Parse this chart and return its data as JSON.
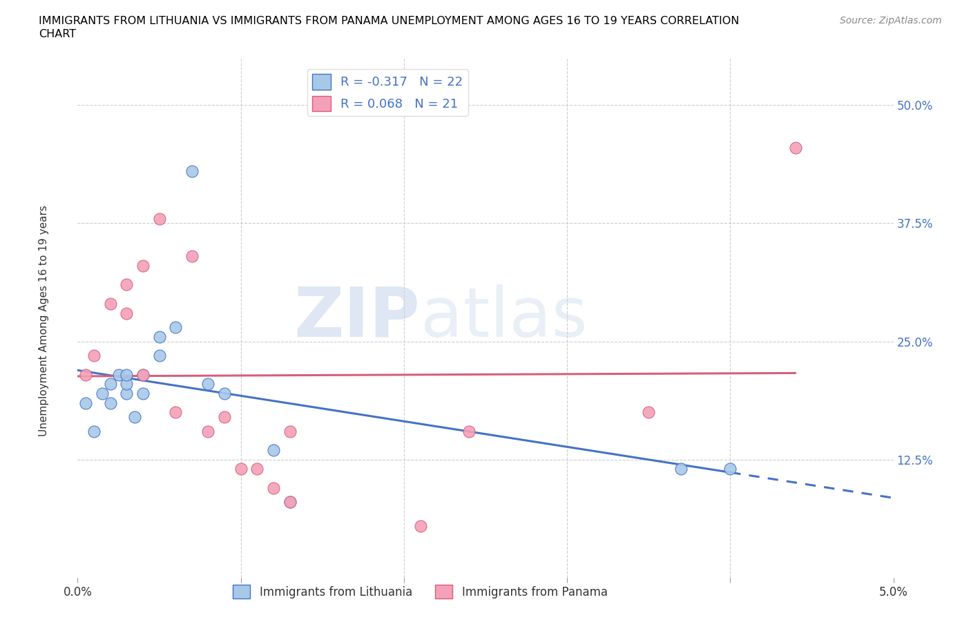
{
  "title_line1": "IMMIGRANTS FROM LITHUANIA VS IMMIGRANTS FROM PANAMA UNEMPLOYMENT AMONG AGES 16 TO 19 YEARS CORRELATION",
  "title_line2": "CHART",
  "source": "Source: ZipAtlas.com",
  "ylabel": "Unemployment Among Ages 16 to 19 years",
  "xlim": [
    0.0,
    0.05
  ],
  "ylim": [
    0.0,
    0.55
  ],
  "xticks": [
    0.0,
    0.01,
    0.02,
    0.03,
    0.04,
    0.05
  ],
  "xticklabels": [
    "0.0%",
    "",
    "",
    "",
    "",
    "5.0%"
  ],
  "ytick_positions": [
    0.125,
    0.25,
    0.375,
    0.5
  ],
  "ytick_labels": [
    "12.5%",
    "25.0%",
    "37.5%",
    "50.0%"
  ],
  "color_lithuania": "#a8c8e8",
  "color_panama": "#f4a0b8",
  "line_color_lithuania": "#4472c4",
  "line_color_panama": "#d4607a",
  "R_lithuania": -0.317,
  "N_lithuania": 22,
  "R_panama": 0.068,
  "N_panama": 21,
  "legend_label_lithuania": "Immigrants from Lithuania",
  "legend_label_panama": "Immigrants from Panama",
  "watermark_zip": "ZIP",
  "watermark_atlas": "atlas",
  "lithuania_x": [
    0.0005,
    0.001,
    0.0015,
    0.002,
    0.002,
    0.0025,
    0.003,
    0.003,
    0.003,
    0.0035,
    0.004,
    0.004,
    0.005,
    0.005,
    0.006,
    0.007,
    0.008,
    0.009,
    0.012,
    0.013,
    0.037,
    0.04
  ],
  "lithuania_y": [
    0.185,
    0.155,
    0.195,
    0.185,
    0.205,
    0.215,
    0.195,
    0.205,
    0.215,
    0.17,
    0.195,
    0.215,
    0.235,
    0.255,
    0.265,
    0.43,
    0.205,
    0.195,
    0.135,
    0.08,
    0.115,
    0.115
  ],
  "panama_x": [
    0.0005,
    0.001,
    0.002,
    0.003,
    0.003,
    0.004,
    0.004,
    0.005,
    0.006,
    0.007,
    0.008,
    0.009,
    0.01,
    0.011,
    0.012,
    0.013,
    0.013,
    0.021,
    0.024,
    0.035,
    0.044
  ],
  "panama_y": [
    0.215,
    0.235,
    0.29,
    0.28,
    0.31,
    0.215,
    0.33,
    0.38,
    0.175,
    0.34,
    0.155,
    0.17,
    0.115,
    0.115,
    0.095,
    0.08,
    0.155,
    0.055,
    0.155,
    0.175,
    0.455
  ],
  "grid_color": "#cccccc",
  "background_color": "#ffffff"
}
